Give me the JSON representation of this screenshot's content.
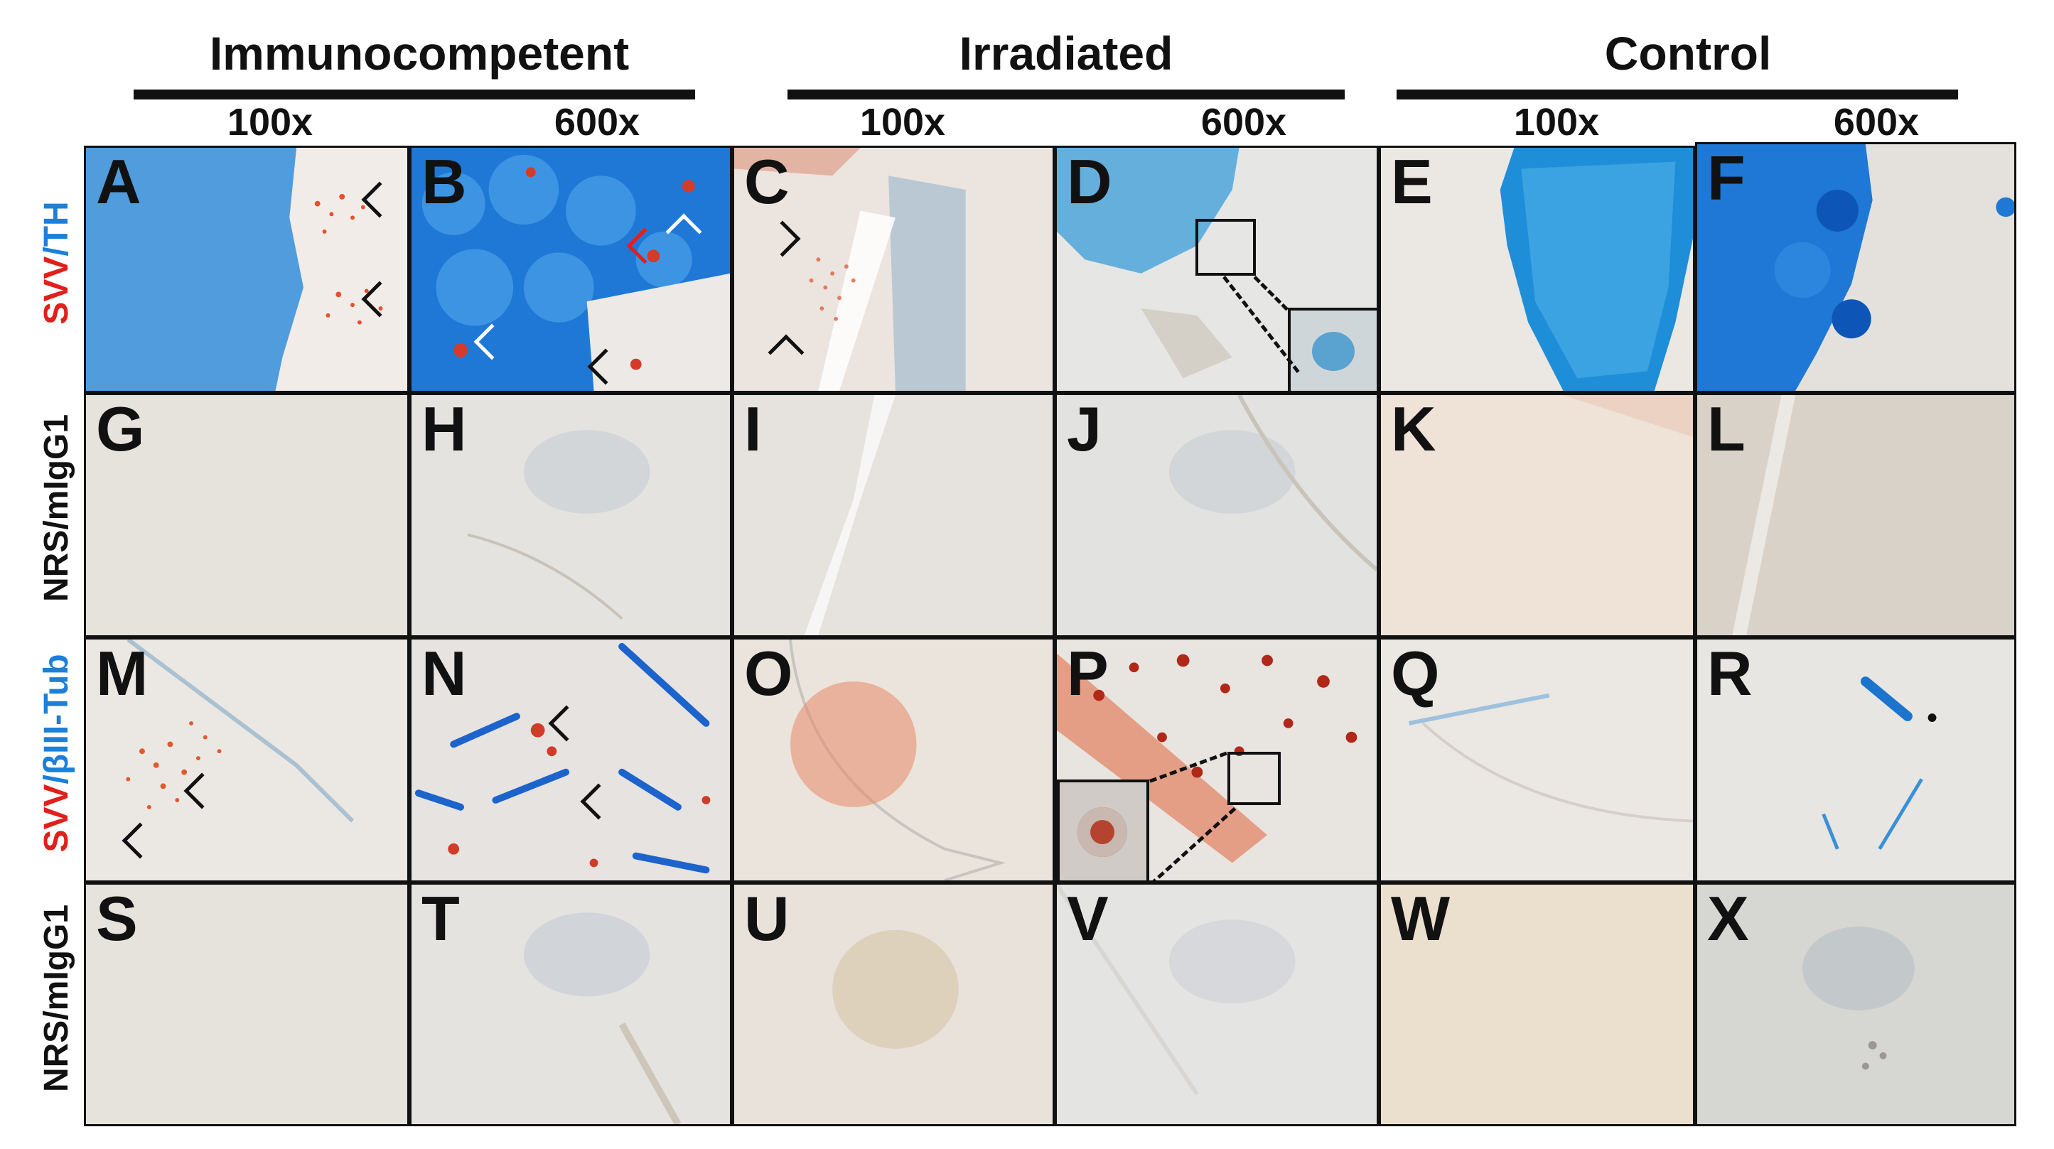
{
  "groups": {
    "immunocompetent": "Immunocompetent",
    "irradiated": "Irradiated",
    "control": "Control"
  },
  "magnifications": {
    "low": "100x",
    "high": "600x"
  },
  "row_labels": {
    "svv": "SVV",
    "slash": "/",
    "th": "TH",
    "biii_tub": "βIII-Tub",
    "nrs_migg1": "NRS/mIgG1"
  },
  "panels": {
    "A": "A",
    "B": "B",
    "C": "C",
    "D": "D",
    "E": "E",
    "F": "F",
    "G": "G",
    "H": "H",
    "I": "I",
    "J": "J",
    "K": "K",
    "L": "L",
    "M": "M",
    "N": "N",
    "O": "O",
    "P": "P",
    "Q": "Q",
    "R": "R",
    "S": "S",
    "T": "T",
    "U": "U",
    "V": "V",
    "W": "W",
    "X": "X"
  },
  "colors": {
    "svv_red": "#e0201b",
    "th_blue": "#1c7fd8",
    "tissue_background": "#efece6"
  }
}
